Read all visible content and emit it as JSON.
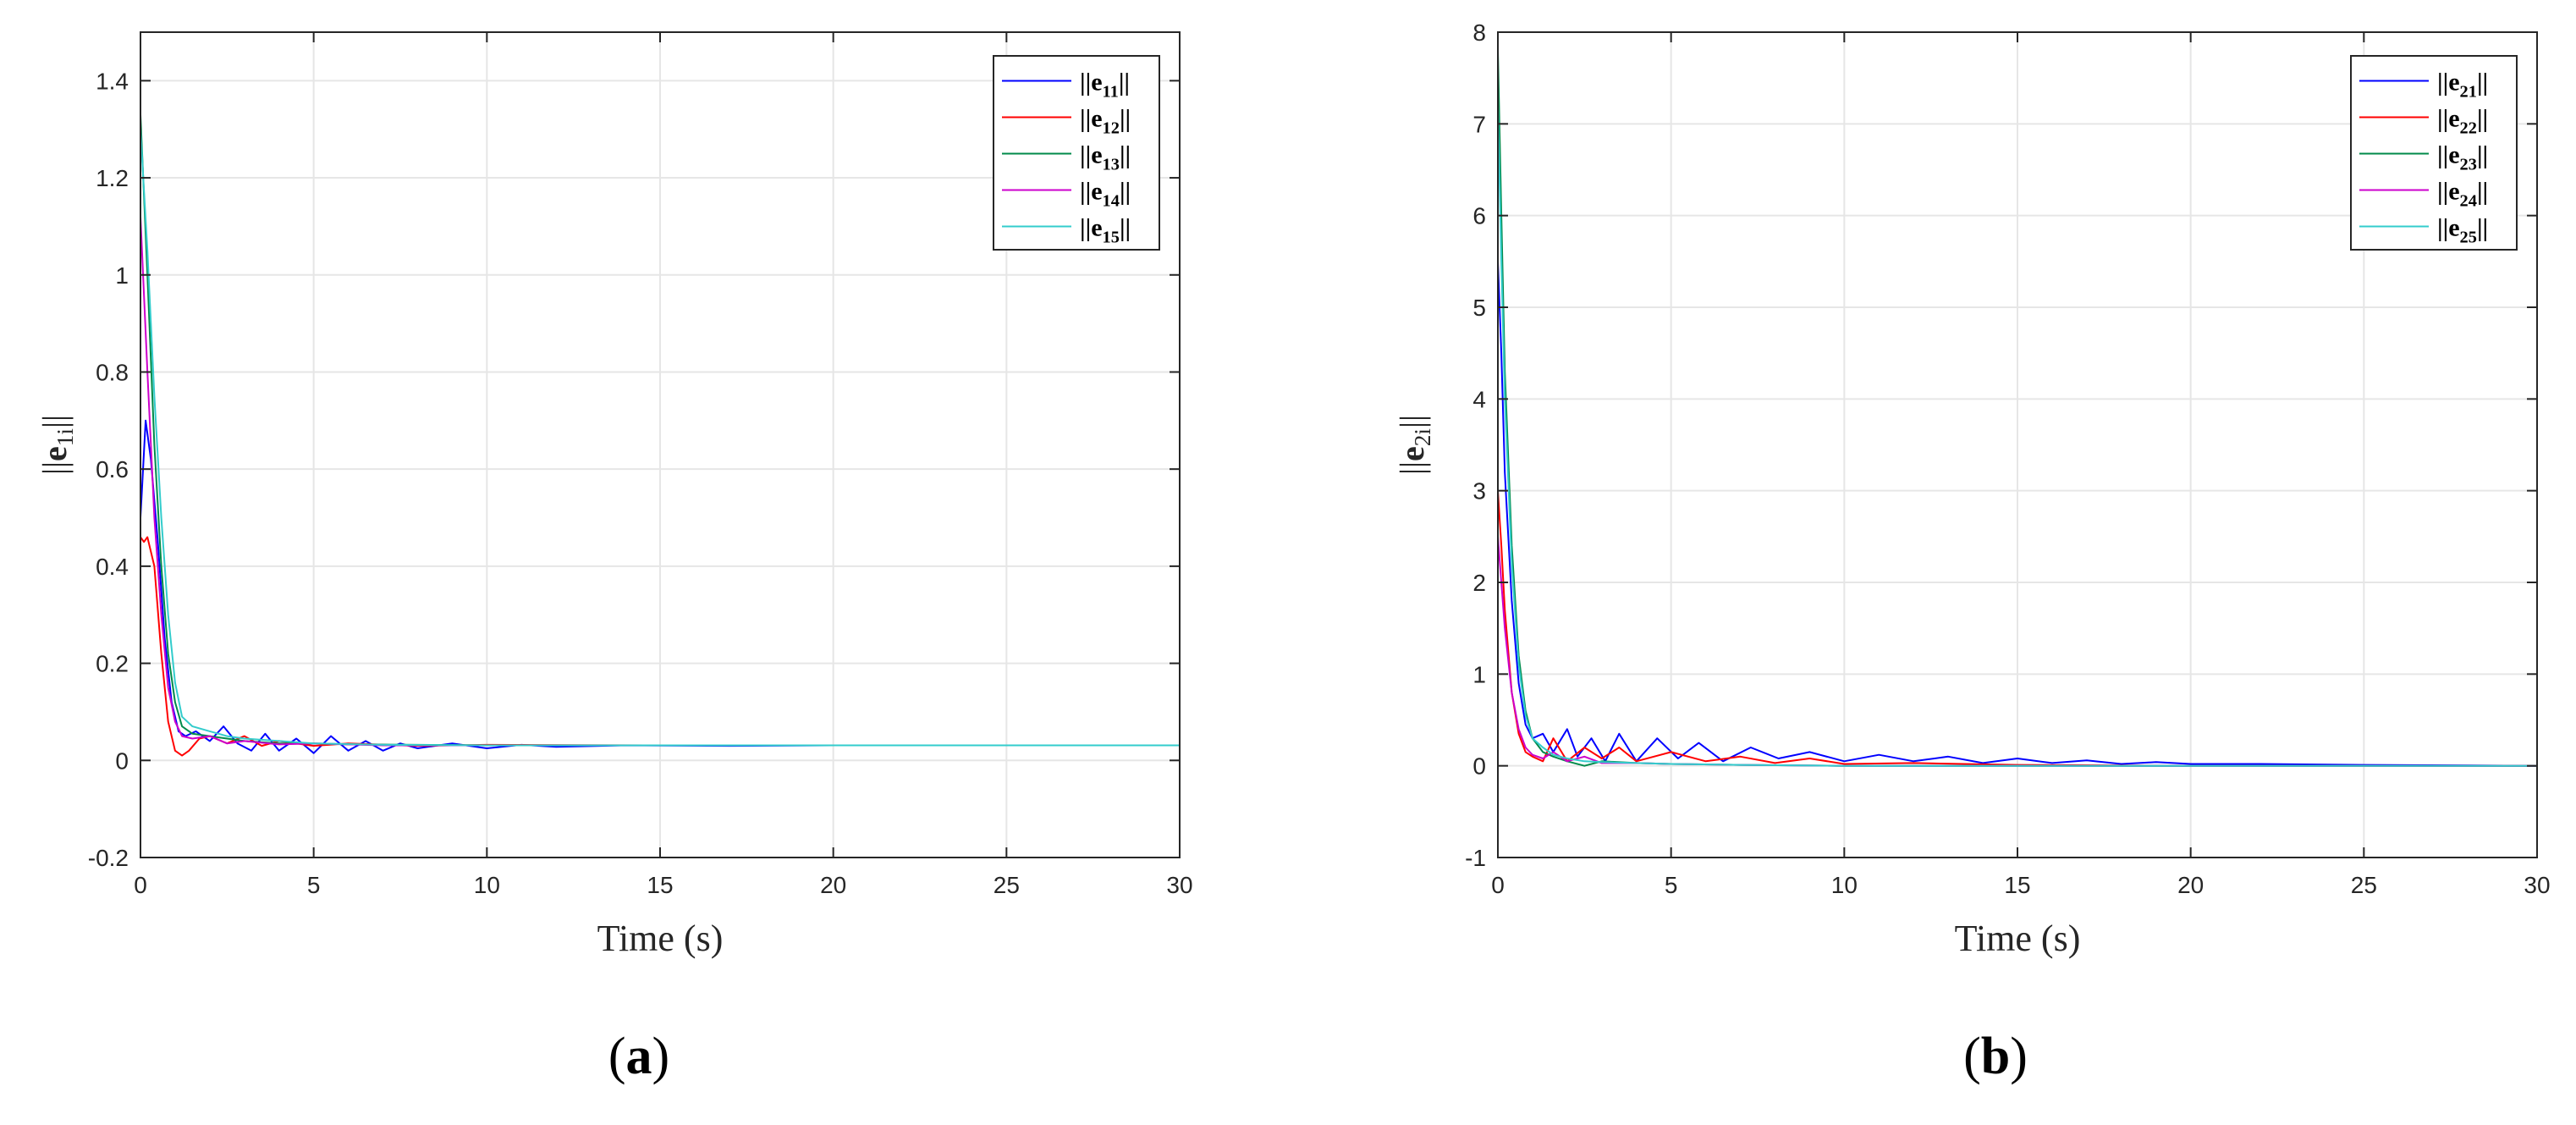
{
  "chart_data": [
    {
      "type": "line",
      "panel_label": "a",
      "xlabel": "Time (s)",
      "ylabel": "||e1i||",
      "ylabel_parts": {
        "base": "e",
        "sub": "1i"
      },
      "xlim": [
        0,
        30
      ],
      "ylim": [
        -0.2,
        1.5
      ],
      "xticks": [
        0,
        5,
        10,
        15,
        20,
        25,
        30
      ],
      "yticks": [
        -0.2,
        0,
        0.2,
        0.4,
        0.6,
        0.8,
        1,
        1.2,
        1.4
      ],
      "ytick_labels": [
        "-0.2",
        "0",
        "0.2",
        "0.4",
        "0.6",
        "0.8",
        "1",
        "1.2",
        "1.4"
      ],
      "grid": true,
      "legend_position": "top-right",
      "series": [
        {
          "name": "||e11||",
          "label_base": "e",
          "label_sub": "11",
          "color": "#0000ff",
          "x": [
            0,
            0.15,
            0.3,
            0.5,
            0.7,
            0.9,
            1.1,
            1.3,
            1.6,
            2.0,
            2.4,
            2.8,
            3.2,
            3.6,
            4.0,
            4.5,
            5.0,
            5.5,
            6.0,
            6.5,
            7.0,
            7.5,
            8.0,
            9.0,
            10.0,
            11.0,
            12.0,
            14.0,
            17.0,
            20.0,
            25.0,
            30.0
          ],
          "y": [
            0.5,
            0.7,
            0.62,
            0.45,
            0.25,
            0.12,
            0.06,
            0.05,
            0.06,
            0.04,
            0.07,
            0.035,
            0.02,
            0.055,
            0.02,
            0.045,
            0.015,
            0.05,
            0.02,
            0.04,
            0.02,
            0.035,
            0.025,
            0.035,
            0.025,
            0.032,
            0.028,
            0.031,
            0.03,
            0.031,
            0.031,
            0.031
          ]
        },
        {
          "name": "||e12||",
          "label_base": "e",
          "label_sub": "12",
          "color": "#ff0000",
          "x": [
            0,
            0.1,
            0.2,
            0.4,
            0.6,
            0.8,
            1.0,
            1.2,
            1.4,
            1.7,
            2.0,
            2.5,
            3.0,
            3.5,
            4.0,
            5.0,
            6.0,
            8.0,
            10.0,
            15.0,
            20.0,
            25.0,
            30.0
          ],
          "y": [
            0.46,
            0.45,
            0.46,
            0.4,
            0.22,
            0.08,
            0.02,
            0.01,
            0.02,
            0.045,
            0.05,
            0.035,
            0.05,
            0.03,
            0.04,
            0.03,
            0.035,
            0.03,
            0.032,
            0.031,
            0.031,
            0.031,
            0.031
          ]
        },
        {
          "name": "||e13||",
          "label_base": "e",
          "label_sub": "13",
          "color": "#008a4a",
          "x": [
            0,
            0.2,
            0.4,
            0.6,
            0.8,
            1.0,
            1.2,
            1.5,
            2.0,
            2.5,
            3.0,
            4.0,
            5.0,
            6.0,
            8.0,
            10.0,
            15.0,
            20.0,
            25.0,
            30.0
          ],
          "y": [
            1.33,
            1.0,
            0.65,
            0.4,
            0.22,
            0.12,
            0.07,
            0.055,
            0.05,
            0.045,
            0.04,
            0.035,
            0.035,
            0.033,
            0.032,
            0.031,
            0.031,
            0.031,
            0.031,
            0.031
          ]
        },
        {
          "name": "||e14||",
          "label_base": "e",
          "label_sub": "14",
          "color": "#cc00cc",
          "x": [
            0,
            0.2,
            0.4,
            0.6,
            0.8,
            1.0,
            1.2,
            1.5,
            2.0,
            2.5,
            3.0,
            4.0,
            5.0,
            7.0,
            10.0,
            15.0,
            20.0,
            25.0,
            30.0
          ],
          "y": [
            1.12,
            0.8,
            0.5,
            0.3,
            0.15,
            0.08,
            0.05,
            0.045,
            0.05,
            0.035,
            0.04,
            0.033,
            0.035,
            0.031,
            0.031,
            0.031,
            0.031,
            0.031,
            0.031
          ]
        },
        {
          "name": "||e15||",
          "label_base": "e",
          "label_sub": "15",
          "color": "#33cccc",
          "x": [
            0,
            0.2,
            0.4,
            0.6,
            0.8,
            1.0,
            1.2,
            1.5,
            2.0,
            2.5,
            3.0,
            4.0,
            5.0,
            7.0,
            10.0,
            15.0,
            20.0,
            25.0,
            30.0
          ],
          "y": [
            1.3,
            1.05,
            0.75,
            0.5,
            0.3,
            0.16,
            0.09,
            0.07,
            0.06,
            0.05,
            0.045,
            0.04,
            0.035,
            0.032,
            0.031,
            0.031,
            0.031,
            0.031,
            0.031
          ]
        }
      ]
    },
    {
      "type": "line",
      "panel_label": "b",
      "xlabel": "Time (s)",
      "ylabel": "||e2i||",
      "ylabel_parts": {
        "base": "e",
        "sub": "2i"
      },
      "xlim": [
        0,
        30
      ],
      "ylim": [
        -1,
        8
      ],
      "xticks": [
        0,
        5,
        10,
        15,
        20,
        25,
        30
      ],
      "yticks": [
        -1,
        0,
        1,
        2,
        3,
        4,
        5,
        6,
        7,
        8
      ],
      "ytick_labels": [
        "-1",
        "0",
        "1",
        "2",
        "3",
        "4",
        "5",
        "6",
        "7",
        "8"
      ],
      "grid": true,
      "legend_position": "top-right",
      "series": [
        {
          "name": "||e21||",
          "label_base": "e",
          "label_sub": "21",
          "color": "#0000ff",
          "x": [
            0,
            0.1,
            0.2,
            0.4,
            0.6,
            0.8,
            1.0,
            1.3,
            1.6,
            2.0,
            2.3,
            2.7,
            3.1,
            3.5,
            4.0,
            4.6,
            5.2,
            5.8,
            6.5,
            7.3,
            8.1,
            9.0,
            10.0,
            11.0,
            12.0,
            13.0,
            14.0,
            15.0,
            16.0,
            17.0,
            18.0,
            19.0,
            20.0,
            22.0,
            25.0,
            30.0
          ],
          "y": [
            5.5,
            4.5,
            3.2,
            1.8,
            0.9,
            0.45,
            0.3,
            0.35,
            0.15,
            0.4,
            0.1,
            0.3,
            0.05,
            0.35,
            0.05,
            0.3,
            0.08,
            0.25,
            0.05,
            0.2,
            0.08,
            0.15,
            0.05,
            0.12,
            0.05,
            0.1,
            0.03,
            0.08,
            0.03,
            0.06,
            0.02,
            0.04,
            0.02,
            0.02,
            0.01,
            0.0
          ]
        },
        {
          "name": "||e22||",
          "label_base": "e",
          "label_sub": "22",
          "color": "#ff0000",
          "x": [
            0,
            0.1,
            0.2,
            0.4,
            0.6,
            0.8,
            1.0,
            1.3,
            1.6,
            2.0,
            2.5,
            3.0,
            3.5,
            4.0,
            5.0,
            6.0,
            7.0,
            8.0,
            9.0,
            10.0,
            12.0,
            15.0,
            20.0,
            25.0,
            30.0
          ],
          "y": [
            3.0,
            2.4,
            1.7,
            0.8,
            0.35,
            0.15,
            0.1,
            0.05,
            0.3,
            0.05,
            0.2,
            0.08,
            0.2,
            0.05,
            0.15,
            0.05,
            0.1,
            0.03,
            0.08,
            0.02,
            0.03,
            0.01,
            0.0,
            0.0,
            0.0
          ]
        },
        {
          "name": "||e23||",
          "label_base": "e",
          "label_sub": "23",
          "color": "#008a4a",
          "x": [
            0,
            0.1,
            0.2,
            0.4,
            0.6,
            0.8,
            1.0,
            1.3,
            1.6,
            2.0,
            2.5,
            3.0,
            4.0,
            5.0,
            7.0,
            10.0,
            15.0,
            20.0,
            25.0,
            30.0
          ],
          "y": [
            7.8,
            6.0,
            4.3,
            2.4,
            1.2,
            0.6,
            0.3,
            0.15,
            0.1,
            0.05,
            0.0,
            0.05,
            0.03,
            0.02,
            0.01,
            0.0,
            0.0,
            0.0,
            0.0,
            0.0
          ]
        },
        {
          "name": "||e24||",
          "label_base": "e",
          "label_sub": "24",
          "color": "#cc00cc",
          "x": [
            0,
            0.1,
            0.2,
            0.4,
            0.6,
            0.8,
            1.0,
            1.3,
            1.6,
            2.0,
            2.5,
            3.0,
            4.0,
            5.0,
            7.0,
            10.0,
            15.0,
            20.0,
            25.0,
            30.0
          ],
          "y": [
            2.5,
            2.0,
            1.5,
            0.8,
            0.4,
            0.2,
            0.12,
            0.08,
            0.15,
            0.05,
            0.1,
            0.03,
            0.03,
            0.02,
            0.01,
            0.0,
            0.0,
            0.0,
            0.0,
            0.0
          ]
        },
        {
          "name": "||e25||",
          "label_base": "e",
          "label_sub": "25",
          "color": "#33cccc",
          "x": [
            0,
            0.1,
            0.2,
            0.4,
            0.6,
            0.8,
            1.0,
            1.3,
            1.6,
            2.0,
            2.5,
            3.0,
            4.0,
            5.0,
            7.0,
            10.0,
            15.0,
            20.0,
            25.0,
            30.0
          ],
          "y": [
            7.2,
            5.5,
            4.0,
            2.2,
            1.1,
            0.55,
            0.3,
            0.2,
            0.12,
            0.08,
            0.05,
            0.04,
            0.03,
            0.02,
            0.01,
            0.0,
            0.0,
            0.0,
            0.0,
            0.0
          ]
        }
      ]
    }
  ]
}
